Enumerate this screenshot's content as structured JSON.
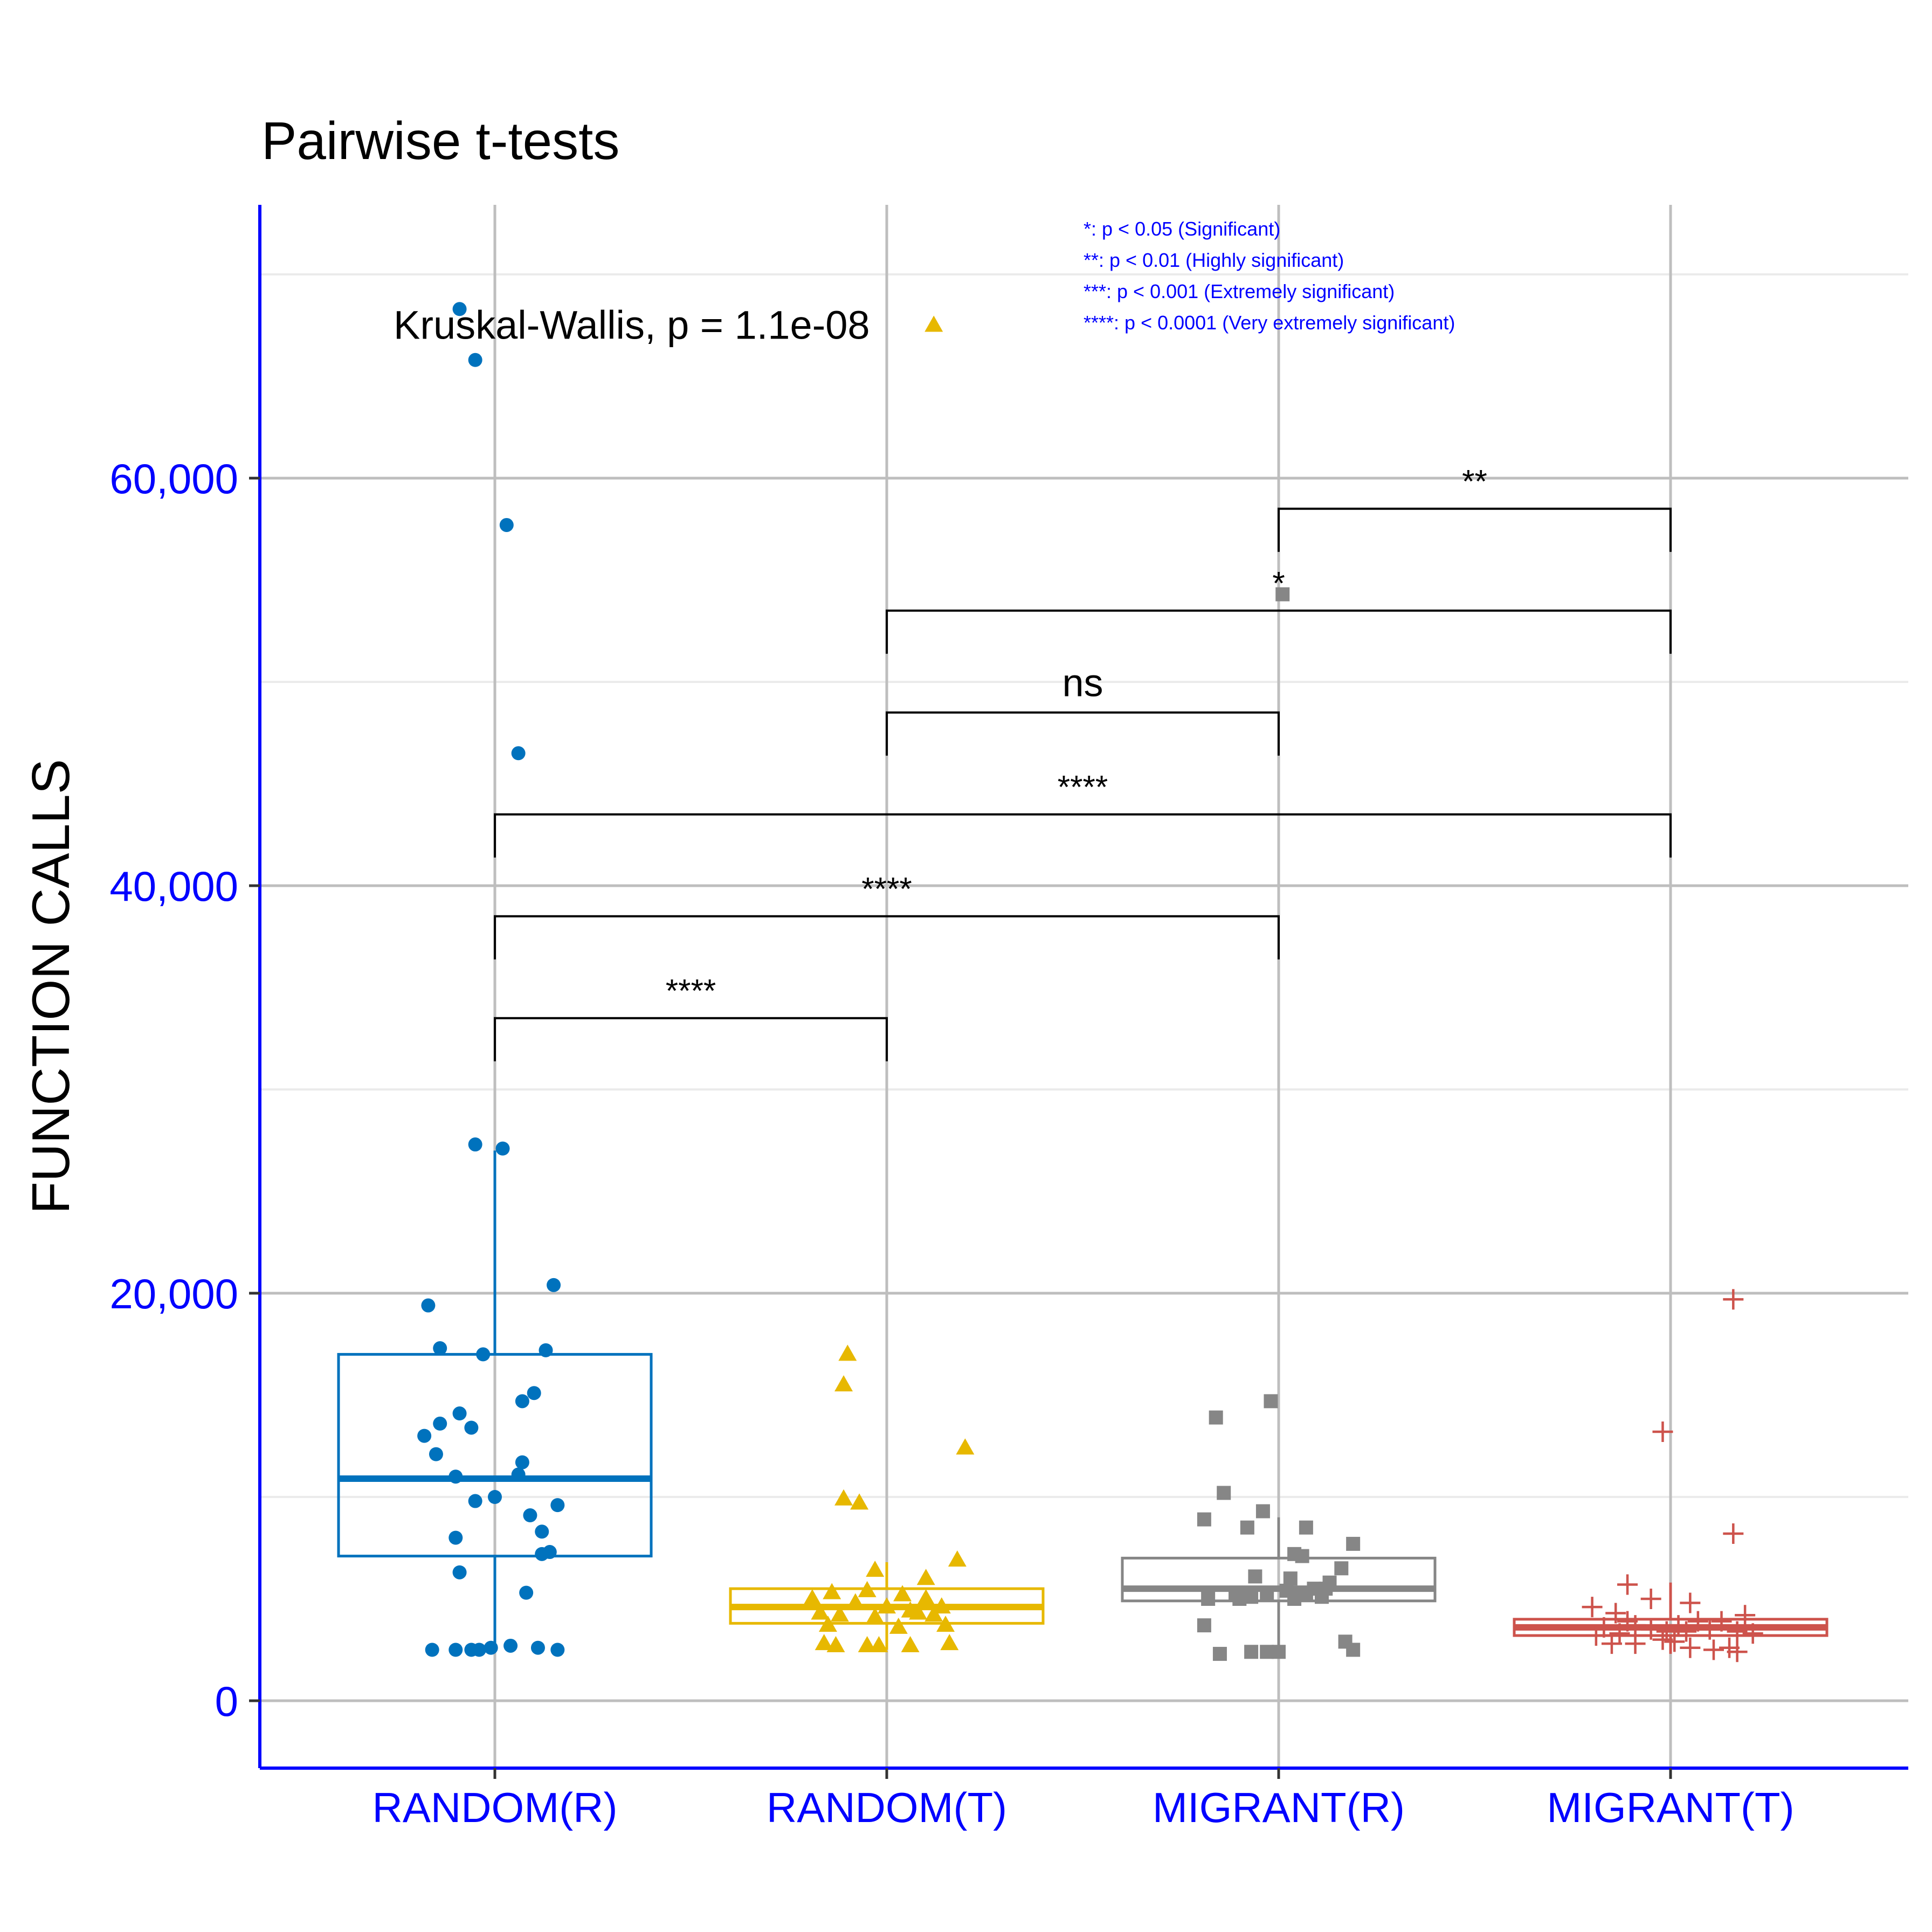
{
  "chart_data": {
    "type": "box",
    "title": "Pairwise t-tests",
    "xlabel": "",
    "ylabel": "FUNCTION CALLS",
    "ylim": [
      -3500,
      70000
    ],
    "y_ticks": [
      0,
      20000,
      40000,
      60000
    ],
    "y_tick_labels": [
      "0",
      "20,000",
      "40,000",
      "60,000"
    ],
    "categories": [
      "RANDOM(R)",
      "RANDOM(T)",
      "MIGRANT(R)",
      "MIGRANT(T)"
    ],
    "grid": true,
    "colors": {
      "axis": "#0000ff",
      "grid": "#bebebe",
      "minor_grid": "#ebebeb",
      "legend_text": "#0000ff",
      "text": "#000000"
    },
    "series": [
      {
        "name": "RANDOM(R)",
        "color": "#0072bd",
        "marker": "circle",
        "box": {
          "q1": 7100,
          "median": 10900,
          "q3": 17000,
          "whisker_low": 2500,
          "whisker_high": 27000
        },
        "points": [
          [
            -0.09,
            68300
          ],
          [
            -0.05,
            65800
          ],
          [
            0.03,
            57700
          ],
          [
            0.06,
            46500
          ],
          [
            -0.05,
            27300
          ],
          [
            0.02,
            27100
          ],
          [
            0.15,
            20400
          ],
          [
            -0.17,
            19400
          ],
          [
            -0.14,
            17300
          ],
          [
            0.13,
            17200
          ],
          [
            -0.03,
            17000
          ],
          [
            0.1,
            15100
          ],
          [
            0.07,
            14700
          ],
          [
            -0.09,
            14100
          ],
          [
            -0.14,
            13600
          ],
          [
            -0.06,
            13400
          ],
          [
            -0.18,
            13000
          ],
          [
            -0.15,
            12100
          ],
          [
            0.07,
            11700
          ],
          [
            -0.1,
            11000
          ],
          [
            0.06,
            11100
          ],
          [
            0.0,
            10000
          ],
          [
            -0.05,
            9800
          ],
          [
            0.16,
            9600
          ],
          [
            0.09,
            9100
          ],
          [
            0.12,
            8300
          ],
          [
            -0.1,
            8000
          ],
          [
            0.12,
            7200
          ],
          [
            0.14,
            7300
          ],
          [
            -0.09,
            6300
          ],
          [
            0.08,
            5300
          ],
          [
            -0.16,
            2500
          ],
          [
            -0.1,
            2500
          ],
          [
            -0.06,
            2500
          ],
          [
            -0.04,
            2500
          ],
          [
            -0.01,
            2600
          ],
          [
            0.04,
            2700
          ],
          [
            0.11,
            2600
          ],
          [
            0.16,
            2500
          ]
        ]
      },
      {
        "name": "RANDOM(T)",
        "color": "#e7b800",
        "marker": "triangle",
        "box": {
          "q1": 3800,
          "median": 4600,
          "q3": 5500,
          "whisker_low": 2500,
          "whisker_high": 6800
        },
        "points": [
          [
            0.12,
            67500
          ],
          [
            -0.1,
            17000
          ],
          [
            -0.11,
            15500
          ],
          [
            0.2,
            12400
          ],
          [
            -0.11,
            9900
          ],
          [
            -0.07,
            9700
          ],
          [
            0.18,
            6900
          ],
          [
            -0.03,
            6400
          ],
          [
            0.1,
            6000
          ],
          [
            -0.19,
            5000
          ],
          [
            -0.14,
            5300
          ],
          [
            -0.05,
            5400
          ],
          [
            0.04,
            5200
          ],
          [
            0.1,
            5000
          ],
          [
            -0.08,
            4800
          ],
          [
            0.0,
            4600
          ],
          [
            0.06,
            4400
          ],
          [
            0.14,
            4600
          ],
          [
            -0.17,
            4300
          ],
          [
            -0.12,
            4200
          ],
          [
            -0.03,
            4100
          ],
          [
            0.08,
            4300
          ],
          [
            0.12,
            4200
          ],
          [
            -0.15,
            3700
          ],
          [
            0.15,
            3700
          ],
          [
            0.03,
            3600
          ],
          [
            -0.16,
            2800
          ],
          [
            -0.13,
            2700
          ],
          [
            -0.05,
            2700
          ],
          [
            -0.02,
            2700
          ],
          [
            0.06,
            2700
          ],
          [
            0.16,
            2800
          ]
        ]
      },
      {
        "name": "MIGRANT(R)",
        "color": "#868686",
        "marker": "square",
        "box": {
          "q1": 4900,
          "median": 5500,
          "q3": 7000,
          "whisker_low": 2500,
          "whisker_high": 9000
        },
        "points": [
          [
            0.01,
            54300
          ],
          [
            -0.02,
            14700
          ],
          [
            -0.16,
            13900
          ],
          [
            -0.14,
            10200
          ],
          [
            -0.19,
            8900
          ],
          [
            -0.04,
            9300
          ],
          [
            -0.08,
            8500
          ],
          [
            0.07,
            8500
          ],
          [
            0.19,
            7700
          ],
          [
            0.04,
            7200
          ],
          [
            0.06,
            7100
          ],
          [
            0.16,
            6500
          ],
          [
            0.13,
            5800
          ],
          [
            -0.06,
            6100
          ],
          [
            0.03,
            6000
          ],
          [
            0.09,
            5500
          ],
          [
            -0.11,
            5300
          ],
          [
            -0.03,
            5300
          ],
          [
            0.02,
            5400
          ],
          [
            0.07,
            5300
          ],
          [
            0.12,
            5500
          ],
          [
            -0.18,
            5000
          ],
          [
            -0.1,
            5000
          ],
          [
            -0.07,
            5100
          ],
          [
            0.04,
            5000
          ],
          [
            0.11,
            5100
          ],
          [
            -0.19,
            3700
          ],
          [
            -0.15,
            2300
          ],
          [
            -0.07,
            2400
          ],
          [
            -0.03,
            2400
          ],
          [
            0.0,
            2400
          ],
          [
            0.17,
            2900
          ],
          [
            0.19,
            2500
          ]
        ]
      },
      {
        "name": "MIGRANT(T)",
        "color": "#cd534c",
        "marker": "plus",
        "box": {
          "q1": 3200,
          "median": 3600,
          "q3": 4000,
          "whisker_low": 2300,
          "whisker_high": 5800
        },
        "points": [
          [
            0.16,
            19700
          ],
          [
            -0.02,
            13200
          ],
          [
            0.16,
            8200
          ],
          [
            -0.11,
            5700
          ],
          [
            -0.05,
            5000
          ],
          [
            0.05,
            4800
          ],
          [
            -0.2,
            4600
          ],
          [
            -0.14,
            4300
          ],
          [
            -0.11,
            3900
          ],
          [
            -0.17,
            3600
          ],
          [
            -0.09,
            3700
          ],
          [
            -0.05,
            3500
          ],
          [
            -0.01,
            3400
          ],
          [
            0.02,
            3700
          ],
          [
            0.04,
            3400
          ],
          [
            0.1,
            3500
          ],
          [
            0.17,
            3400
          ],
          [
            0.21,
            3300
          ],
          [
            0.19,
            4200
          ],
          [
            0.13,
            3900
          ],
          [
            0.07,
            3900
          ],
          [
            -0.13,
            3300
          ],
          [
            -0.19,
            3200
          ],
          [
            -0.15,
            2800
          ],
          [
            -0.09,
            2800
          ],
          [
            -0.02,
            3000
          ],
          [
            0.01,
            2900
          ],
          [
            0.05,
            2600
          ],
          [
            0.11,
            2500
          ],
          [
            0.15,
            2600
          ],
          [
            0.17,
            2400
          ]
        ]
      }
    ],
    "annotations": {
      "global_test": {
        "text": "Kruskal-Wallis, p = 1.1e-08",
        "y": 67500
      },
      "legend_lines": [
        "*: p < 0.05 (Significant)",
        "**: p < 0.01 (Highly significant)",
        "***: p < 0.001 (Extremely significant)",
        "****: p < 0.0001 (Very extremely significant)"
      ],
      "brackets": [
        {
          "from": 0,
          "to": 1,
          "y": 33500,
          "label": "****"
        },
        {
          "from": 0,
          "to": 2,
          "y": 38500,
          "label": "****"
        },
        {
          "from": 0,
          "to": 3,
          "y": 43500,
          "label": "****"
        },
        {
          "from": 1,
          "to": 2,
          "y": 48500,
          "label": "ns"
        },
        {
          "from": 1,
          "to": 3,
          "y": 53500,
          "label": "*"
        },
        {
          "from": 2,
          "to": 3,
          "y": 58500,
          "label": "**"
        }
      ]
    }
  }
}
